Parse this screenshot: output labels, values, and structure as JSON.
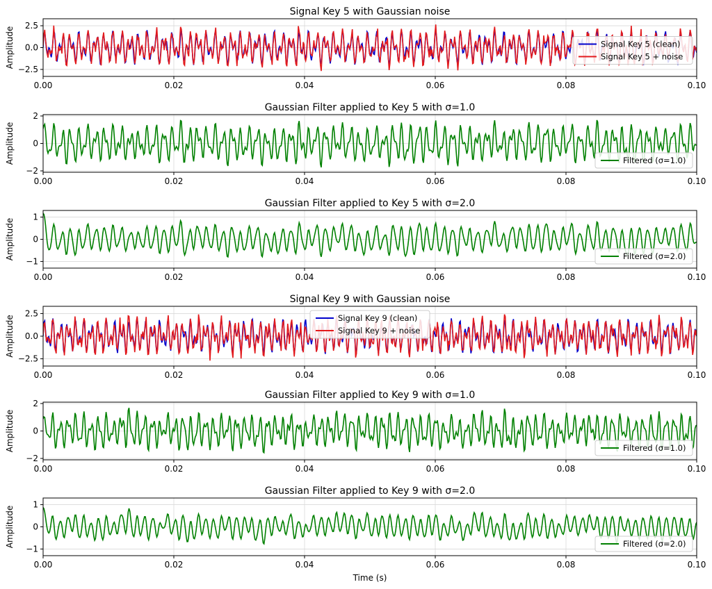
{
  "figure": {
    "xlabel_bottom": "Time (s)"
  },
  "chart_data": [
    {
      "type": "line",
      "title": "Signal Key 5 with Gaussian noise",
      "xlabel": "",
      "ylabel": "Amplitude",
      "xlim": [
        0,
        0.1
      ],
      "ylim": [
        -3.3,
        3.3
      ],
      "xticks": [
        0.0,
        0.02,
        0.04,
        0.06,
        0.08,
        0.1
      ],
      "xtick_labels": [
        "0.00",
        "0.02",
        "0.04",
        "0.06",
        "0.08",
        "0.10"
      ],
      "yticks": [
        -2.5,
        0,
        2.5
      ],
      "ytick_labels": [
        "−2.5",
        "0.0",
        "2.5"
      ],
      "grid": true,
      "legend": "right",
      "series": [
        {
          "name": "Signal Key 5 (clean)",
          "color": "#0000cc",
          "key": 5,
          "kind": "clean"
        },
        {
          "name": "Signal Key 5 + noise",
          "color": "#e31a1c",
          "key": 5,
          "kind": "noisy"
        }
      ]
    },
    {
      "type": "line",
      "title": "Gaussian Filter applied to Key 5 with σ=1.0",
      "xlabel": "",
      "ylabel": "Amplitude",
      "xlim": [
        0,
        0.1
      ],
      "ylim": [
        -2.1,
        2.1
      ],
      "xticks": [
        0.0,
        0.02,
        0.04,
        0.06,
        0.08,
        0.1
      ],
      "xtick_labels": [
        "0.00",
        "0.02",
        "0.04",
        "0.06",
        "0.08",
        "0.10"
      ],
      "yticks": [
        -2,
        0,
        2
      ],
      "ytick_labels": [
        "−2",
        "0",
        "2"
      ],
      "grid": true,
      "legend": "bottom-right",
      "series": [
        {
          "name": "Filtered (σ=1.0)",
          "color": "#008000",
          "key": 5,
          "kind": "filtered",
          "sigma": 1.0
        }
      ]
    },
    {
      "type": "line",
      "title": "Gaussian Filter applied to Key 5 with σ=2.0",
      "xlabel": "",
      "ylabel": "Amplitude",
      "xlim": [
        0,
        0.1
      ],
      "ylim": [
        -1.3,
        1.3
      ],
      "xticks": [
        0.0,
        0.02,
        0.04,
        0.06,
        0.08,
        0.1
      ],
      "xtick_labels": [
        "0.00",
        "0.02",
        "0.04",
        "0.06",
        "0.08",
        "0.10"
      ],
      "yticks": [
        -1,
        0,
        1
      ],
      "ytick_labels": [
        "−1",
        "0",
        "1"
      ],
      "grid": true,
      "legend": "bottom-right",
      "series": [
        {
          "name": "Filtered (σ=2.0)",
          "color": "#008000",
          "key": 5,
          "kind": "filtered",
          "sigma": 2.0
        }
      ]
    },
    {
      "type": "line",
      "title": "Signal Key 9 with Gaussian noise",
      "xlabel": "",
      "ylabel": "Amplitude",
      "xlim": [
        0,
        0.1
      ],
      "ylim": [
        -3.3,
        3.3
      ],
      "xticks": [
        0.0,
        0.02,
        0.04,
        0.06,
        0.08,
        0.1
      ],
      "xtick_labels": [
        "0.00",
        "0.02",
        "0.04",
        "0.06",
        "0.08",
        "0.10"
      ],
      "yticks": [
        -2.5,
        0,
        2.5
      ],
      "ytick_labels": [
        "−2.5",
        "0.0",
        "2.5"
      ],
      "grid": true,
      "legend": "upper-center",
      "series": [
        {
          "name": "Signal Key 9 (clean)",
          "color": "#0000cc",
          "key": 9,
          "kind": "clean"
        },
        {
          "name": "Signal Key 9 + noise",
          "color": "#e31a1c",
          "key": 9,
          "kind": "noisy"
        }
      ]
    },
    {
      "type": "line",
      "title": "Gaussian Filter applied to Key 9 with σ=1.0",
      "xlabel": "",
      "ylabel": "Amplitude",
      "xlim": [
        0,
        0.1
      ],
      "ylim": [
        -2.1,
        2.1
      ],
      "xticks": [
        0.0,
        0.02,
        0.04,
        0.06,
        0.08,
        0.1
      ],
      "xtick_labels": [
        "0.00",
        "0.02",
        "0.04",
        "0.06",
        "0.08",
        "0.10"
      ],
      "yticks": [
        -2,
        0,
        2
      ],
      "ytick_labels": [
        "−2",
        "0",
        "2"
      ],
      "grid": true,
      "legend": "bottom-right",
      "series": [
        {
          "name": "Filtered (σ=1.0)",
          "color": "#008000",
          "key": 9,
          "kind": "filtered",
          "sigma": 1.0
        }
      ]
    },
    {
      "type": "line",
      "title": "Gaussian Filter applied to Key 9 with σ=2.0",
      "xlabel": "Time (s)",
      "ylabel": "Amplitude",
      "xlim": [
        0,
        0.1
      ],
      "ylim": [
        -1.3,
        1.3
      ],
      "xticks": [
        0.0,
        0.02,
        0.04,
        0.06,
        0.08,
        0.1
      ],
      "xtick_labels": [
        "0.00",
        "0.02",
        "0.04",
        "0.06",
        "0.08",
        "0.10"
      ],
      "yticks": [
        -1,
        0,
        1
      ],
      "ytick_labels": [
        "−1",
        "0",
        "1"
      ],
      "grid": true,
      "legend": "bottom-right",
      "series": [
        {
          "name": "Filtered (σ=2.0)",
          "color": "#008000",
          "key": 9,
          "kind": "filtered",
          "sigma": 2.0
        }
      ]
    }
  ]
}
